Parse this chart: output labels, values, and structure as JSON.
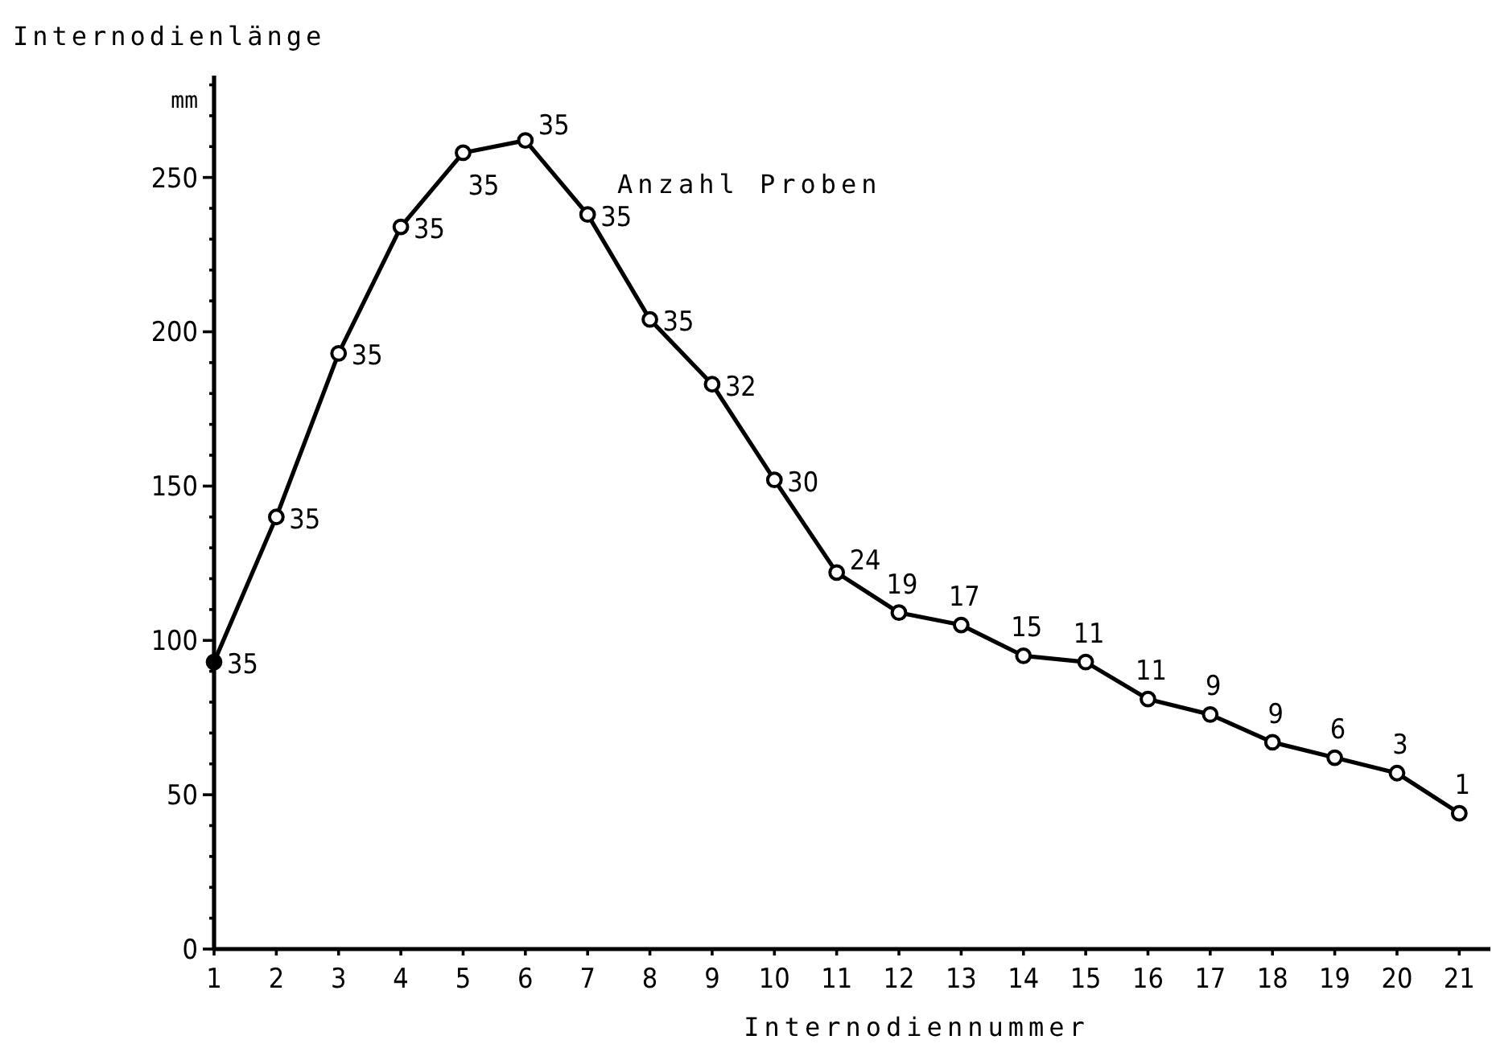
{
  "chart_data": {
    "type": "line",
    "ylabel": "Internodienlänge",
    "xlabel": "Internodiennummer",
    "x": [
      1,
      2,
      3,
      4,
      5,
      6,
      7,
      8,
      9,
      10,
      11,
      12,
      13,
      14,
      15,
      16,
      17,
      18,
      19,
      20,
      21
    ],
    "series": [
      {
        "color": "#000000",
        "values": [
          93,
          140,
          193,
          234,
          258,
          262,
          238,
          204,
          183,
          152,
          122,
          109,
          105,
          95,
          93,
          81,
          76,
          67,
          62,
          57,
          44
        ]
      }
    ],
    "xlim": [
      1,
      21.5
    ],
    "xticks": [
      1,
      2,
      3,
      4,
      5,
      6,
      7,
      8,
      9,
      10,
      11,
      12,
      13,
      14,
      15,
      16,
      17,
      18,
      19,
      20,
      21
    ],
    "ylim": [
      0,
      283
    ],
    "yticks": [
      0,
      {
        "value": 10,
        "label": null
      },
      {
        "value": 20,
        "label": null
      },
      {
        "value": 30,
        "label": null
      },
      {
        "value": 40,
        "label": null
      },
      50,
      {
        "value": 60,
        "label": null
      },
      {
        "value": 70,
        "label": null
      },
      {
        "value": 80,
        "label": null
      },
      {
        "value": 90,
        "label": null
      },
      100,
      {
        "value": 110,
        "label": null
      },
      {
        "value": 120,
        "label": null
      },
      {
        "value": 130,
        "label": null
      },
      {
        "value": 140,
        "label": null
      },
      150,
      {
        "value": 160,
        "label": null
      },
      {
        "value": 170,
        "label": null
      },
      {
        "value": 180,
        "label": null
      },
      {
        "value": 190,
        "label": null
      },
      200,
      {
        "value": 210,
        "label": null
      },
      {
        "value": 220,
        "label": null
      },
      {
        "value": 230,
        "label": null
      },
      {
        "value": 240,
        "label": null
      },
      250,
      {
        "value": 260,
        "label": null
      },
      {
        "value": 270,
        "label": null
      },
      {
        "value": 280,
        "label": null
      }
    ],
    "marker": "circle",
    "line_style": "solid",
    "annotations": [
      "mm",
      "Anzahl Proben",
      {
        "text": "35",
        "x": 1,
        "y": 93
      },
      {
        "text": "35",
        "x": 2,
        "y": 140
      },
      {
        "text": "35",
        "x": 3,
        "y": 193
      },
      {
        "text": "35",
        "x": 4,
        "y": 234
      },
      {
        "text": "35",
        "x": 5,
        "y": 258
      },
      {
        "text": "35",
        "x": 6,
        "y": 262
      },
      {
        "text": "35",
        "x": 7,
        "y": 238
      },
      {
        "text": "35",
        "x": 8,
        "y": 204
      },
      {
        "text": "32",
        "x": 9,
        "y": 183
      },
      {
        "text": "30",
        "x": 10,
        "y": 152
      },
      {
        "text": "24",
        "x": 11,
        "y": 122
      },
      {
        "text": "19",
        "x": 12,
        "y": 109
      },
      {
        "text": "17",
        "x": 13,
        "y": 105
      },
      {
        "text": "15",
        "x": 14,
        "y": 95
      },
      {
        "text": "11",
        "x": 15,
        "y": 93
      },
      {
        "text": "11",
        "x": 16,
        "y": 81
      },
      {
        "text": "9",
        "x": 17,
        "y": 76
      },
      {
        "text": "9",
        "x": 18,
        "y": 67
      },
      {
        "text": "6",
        "x": 19,
        "y": 62
      },
      {
        "text": "3",
        "x": 20,
        "y": 57
      },
      {
        "text": "1",
        "x": 21,
        "y": 44
      }
    ]
  }
}
